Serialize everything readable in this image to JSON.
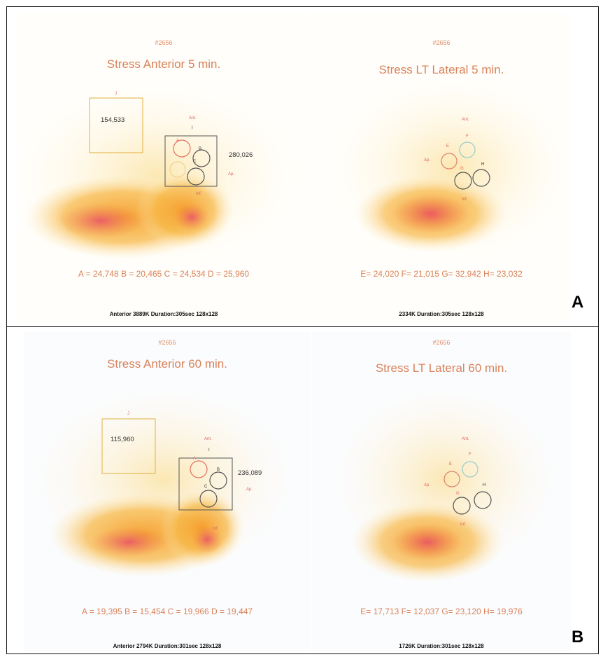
{
  "figure": {
    "panel_labels": [
      "A",
      "B"
    ],
    "rows": [
      {
        "label": "A",
        "left": {
          "id": "#2656",
          "title": "Stress Anterior 5 min.",
          "roi_total": "154,533",
          "roi_box_value": "280,026",
          "roi_label_j": "J",
          "mark_ant": "Ant.",
          "mark_ap": "Ap.",
          "mark_inf": "Inf.",
          "mark_i": "I",
          "roi_a": "A",
          "roi_b": "B",
          "roi_c": "C",
          "counts": "A = 24,748   B = 20,465   C = 24,534   D = 25,960",
          "footer": "Anterior 3889K Duration:305sec 128x128"
        },
        "right": {
          "id": "#2656",
          "title": "Stress LT Lateral 5 min.",
          "mark_ant": "Ant.",
          "mark_ap": "Ap.",
          "mark_inf": "Inf.",
          "roi_e": "E",
          "roi_f": "F",
          "roi_g": "G",
          "roi_h": "H",
          "counts": "E= 24,020   F= 21,015   G= 32,942   H= 23,032",
          "footer": "2334K Duration:305sec 128x128"
        }
      },
      {
        "label": "B",
        "left": {
          "id": "#2656",
          "title": "Stress Anterior 60 min.",
          "roi_total": "115,960",
          "roi_box_value": "236,089",
          "roi_label_j": "J",
          "mark_ant": "Ant.",
          "mark_ap": "Ap.",
          "mark_inf": "Inf.",
          "mark_i": "I",
          "roi_a": "A",
          "roi_b": "B",
          "roi_c": "C",
          "counts": "A = 19,395   B = 15,454   C = 19,966   D = 19,447",
          "footer": "Anterior 2794K Duration:301sec 128x128"
        },
        "right": {
          "id": "#2656",
          "title": "Stress LT Lateral 60 min.",
          "mark_ant": "Ant.",
          "mark_ap": "Ap.",
          "mark_inf": "Inf.",
          "roi_e": "E",
          "roi_f": "F",
          "roi_g": "G",
          "roi_h": "H",
          "counts": "E= 17,713   F= 12,037   G= 23,120   H= 19,976",
          "footer": "1726K Duration:301sec 128x128"
        }
      }
    ],
    "colors": {
      "background": "#ffffff",
      "text_orange": "#d9825a",
      "hot_spot": "#e85a6a",
      "uptake": "#f2a628",
      "roi_box_gray": "#555555",
      "roi_box_yellow": "#e0b040"
    }
  }
}
